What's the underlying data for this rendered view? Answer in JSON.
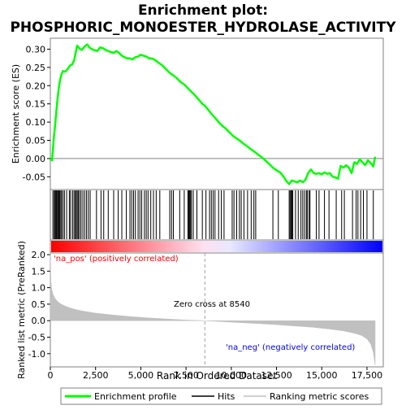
{
  "chart_data": {
    "type": "line",
    "title_line1": "Enrichment plot:",
    "title_line2": "PHOSPHORIC_MONOESTER_HYDROLASE_ACTIVITY",
    "top_panel": {
      "ylabel": "Enrichment score (ES)",
      "ylim": [
        -0.085,
        0.33
      ],
      "yticks": [
        -0.05,
        0.0,
        0.05,
        0.1,
        0.15,
        0.2,
        0.25,
        0.3
      ],
      "ytick_labels": [
        "-0.05",
        "0.00",
        "0.05",
        "0.10",
        "0.15",
        "0.20",
        "0.25",
        "0.30"
      ],
      "series": [
        {
          "name": "Enrichment profile",
          "color": "#00ff00",
          "x": [
            0,
            100,
            180,
            260,
            330,
            400,
            470,
            540,
            610,
            700,
            820,
            950,
            1080,
            1200,
            1320,
            1400,
            1480,
            1560,
            1650,
            1750,
            1850,
            1950,
            2050,
            2150,
            2300,
            2450,
            2600,
            2750,
            2900,
            3050,
            3200,
            3350,
            3500,
            3650,
            3800,
            3950,
            4100,
            4250,
            4400,
            4550,
            4700,
            4850,
            5000,
            5150,
            5300,
            5450,
            5600,
            5800,
            6000,
            6200,
            6400,
            6600,
            6800,
            7000,
            7200,
            7400,
            7600,
            7800,
            8000,
            8200,
            8400,
            8540,
            8700,
            8900,
            9100,
            9300,
            9500,
            9700,
            9900,
            10100,
            10300,
            10500,
            10700,
            10900,
            11100,
            11300,
            11500,
            11700,
            11900,
            12100,
            12300,
            12500,
            12700,
            12900,
            13050,
            13200,
            13350,
            13500,
            13650,
            13800,
            13950,
            14100,
            14250,
            14400,
            14550,
            14700,
            14850,
            15000,
            15150,
            15300,
            15450,
            15600,
            15750,
            15900,
            16050,
            16200,
            16350,
            16500,
            16650,
            16800,
            16950,
            17100,
            17250,
            17400,
            17550,
            17700,
            17850,
            17950
          ],
          "y": [
            0.0,
            -0.005,
            0.05,
            0.09,
            0.13,
            0.165,
            0.195,
            0.215,
            0.23,
            0.24,
            0.238,
            0.245,
            0.255,
            0.258,
            0.27,
            0.29,
            0.31,
            0.305,
            0.3,
            0.298,
            0.305,
            0.31,
            0.313,
            0.305,
            0.3,
            0.297,
            0.295,
            0.305,
            0.303,
            0.298,
            0.295,
            0.292,
            0.29,
            0.295,
            0.29,
            0.282,
            0.278,
            0.275,
            0.275,
            0.272,
            0.278,
            0.28,
            0.285,
            0.282,
            0.28,
            0.275,
            0.275,
            0.27,
            0.262,
            0.255,
            0.245,
            0.235,
            0.228,
            0.22,
            0.21,
            0.203,
            0.193,
            0.183,
            0.173,
            0.162,
            0.15,
            0.145,
            0.135,
            0.123,
            0.112,
            0.1,
            0.09,
            0.082,
            0.072,
            0.062,
            0.055,
            0.048,
            0.04,
            0.033,
            0.025,
            0.018,
            0.01,
            0.003,
            -0.006,
            -0.015,
            -0.025,
            -0.032,
            -0.038,
            -0.05,
            -0.062,
            -0.07,
            -0.06,
            -0.063,
            -0.065,
            -0.06,
            -0.065,
            -0.058,
            -0.04,
            -0.03,
            -0.04,
            -0.042,
            -0.04,
            -0.043,
            -0.038,
            -0.042,
            -0.04,
            -0.05,
            -0.052,
            -0.055,
            -0.02,
            -0.025,
            -0.018,
            -0.025,
            -0.04,
            -0.01,
            -0.015,
            -0.002,
            -0.01,
            -0.018,
            -0.005,
            -0.012,
            -0.022,
            0.005
          ]
        }
      ]
    },
    "hits": {
      "name": "Hits",
      "color": "#000000",
      "x": [
        140,
        210,
        260,
        300,
        340,
        390,
        420,
        470,
        520,
        580,
        620,
        700,
        780,
        900,
        1050,
        1120,
        1230,
        1310,
        1380,
        1430,
        1490,
        1550,
        1620,
        1700,
        1800,
        1900,
        2000,
        2100,
        2200,
        2550,
        2800,
        2950,
        3200,
        3500,
        3750,
        3950,
        4200,
        4400,
        4500,
        4600,
        4700,
        4850,
        4950,
        5050,
        5200,
        5300,
        5400,
        5550,
        5700,
        5850,
        6050,
        6600,
        6700,
        6800,
        7150,
        7400,
        7600,
        7650,
        7700,
        7750,
        7800,
        7900,
        8100,
        8400,
        8600,
        8800,
        8900,
        9000,
        9100,
        9300,
        9450,
        9600,
        10050,
        10150,
        10300,
        10450,
        10550,
        10700,
        10900,
        11100,
        11250,
        11350,
        12300,
        12600,
        13200,
        13250,
        13300,
        13350,
        13400,
        13550,
        13700,
        13850,
        13950,
        14050,
        14150,
        14200,
        14300,
        14350,
        14700,
        14850,
        15150,
        15400,
        15800,
        16100,
        16250,
        16700,
        16900,
        17000,
        17150,
        17300,
        17500,
        17850
      ]
    },
    "ranked_panel": {
      "ylabel": "Ranked list metric (PreRanked)",
      "ylim": [
        -1.4,
        2.05
      ],
      "yticks": [
        -1.0,
        -0.5,
        0.0,
        0.5,
        1.0,
        1.5,
        2.0
      ],
      "ytick_labels": [
        "-1.0",
        "-0.5",
        "0.0",
        "0.5",
        "1.0",
        "1.5",
        "2.0"
      ],
      "series": {
        "name": "Ranking metric scores",
        "color": "#c0c0c0",
        "x": [
          0,
          30,
          80,
          150,
          250,
          400,
          600,
          900,
          1300,
          1800,
          2500,
          3500,
          4500,
          5500,
          6500,
          7500,
          8540,
          9500,
          10500,
          11500,
          12500,
          13500,
          14500,
          15500,
          16200,
          16800,
          17200,
          17500,
          17700,
          17850,
          17950
        ],
        "y": [
          2.05,
          1.2,
          0.95,
          0.8,
          0.68,
          0.58,
          0.5,
          0.42,
          0.35,
          0.29,
          0.23,
          0.17,
          0.12,
          0.08,
          0.05,
          0.02,
          0.0,
          -0.03,
          -0.06,
          -0.09,
          -0.12,
          -0.16,
          -0.2,
          -0.26,
          -0.31,
          -0.38,
          -0.45,
          -0.55,
          -0.7,
          -0.95,
          -1.35
        ]
      },
      "zero_cross_label": "Zero cross at 8540",
      "zero_cross_x": 8540,
      "pos_label": "'na_pos' (positively correlated)",
      "neg_label": "'na_neg' (negatively correlated)",
      "pos_label_color": "#ff0000",
      "neg_label_color": "#0000ff"
    },
    "xlabel": "Rank in Ordered Dataset",
    "xlim": [
      0,
      18400
    ],
    "xticks": [
      0,
      2500,
      5000,
      7500,
      10000,
      12500,
      15000,
      17500
    ],
    "xtick_labels": [
      "0",
      "2,500",
      "5,000",
      "7,500",
      "10,000",
      "12,500",
      "15,000",
      "17,500"
    ],
    "gradient_colors": [
      "#ff0000",
      "#ffffff",
      "#0000ff"
    ],
    "legend": {
      "placement": "bottom",
      "items": [
        {
          "label": "Enrichment profile",
          "color": "#00ff00",
          "kind": "line"
        },
        {
          "label": "Hits",
          "color": "#000000",
          "kind": "line"
        },
        {
          "label": "Ranking metric scores",
          "color": "#c0c0c0",
          "kind": "line"
        }
      ]
    }
  }
}
